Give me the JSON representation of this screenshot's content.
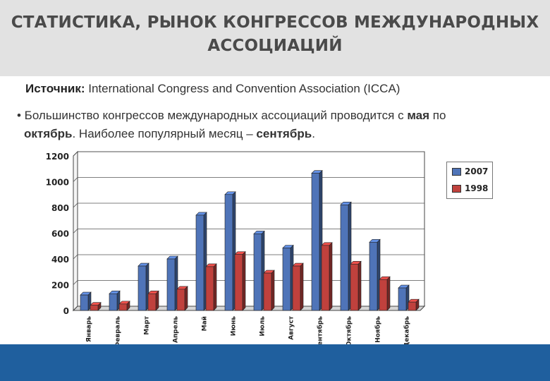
{
  "slide": {
    "title_line1": "СТАТИСТИКА, РЫНОК КОНГРЕССОВ МЕЖДУНАРОДНЫХ",
    "title_line2": "АССОЦИАЦИЙ",
    "source_label": "Источник:",
    "source_text": " International Congress and Convention Association (ICCA)",
    "bullet_part1": "• Большинство конгрессов международных ассоциаций проводится с ",
    "bullet_bold1": "мая",
    "bullet_part2": " по",
    "bullet_bold2": "октябрь",
    "bullet_part3": ". Наиболее популярный месяц – ",
    "bullet_bold3": "сентябрь",
    "bullet_part4": "."
  },
  "colors": {
    "series_2007": "#4f74b8",
    "series_1998": "#c0413d",
    "footer": "#1f5f9e"
  },
  "chart_data": {
    "type": "bar",
    "categories": [
      "Январь",
      "Февраль",
      "Март",
      "Апрель",
      "Май",
      "Июнь",
      "Июль",
      "Август",
      "Сентябрь",
      "Октябрь",
      "Ноябрь",
      "Декабрь"
    ],
    "series": [
      {
        "name": "2007",
        "values": [
          120,
          130,
          345,
          400,
          740,
          900,
          595,
          485,
          1065,
          820,
          530,
          175
        ]
      },
      {
        "name": "1998",
        "values": [
          40,
          50,
          130,
          165,
          340,
          435,
          290,
          345,
          505,
          360,
          240,
          65
        ]
      }
    ],
    "ylim": [
      0,
      1200
    ],
    "yticks": [
      "0",
      "200",
      "400",
      "600",
      "800",
      "1000",
      "1200"
    ],
    "grid": true,
    "legend": "right",
    "style": "3d"
  }
}
